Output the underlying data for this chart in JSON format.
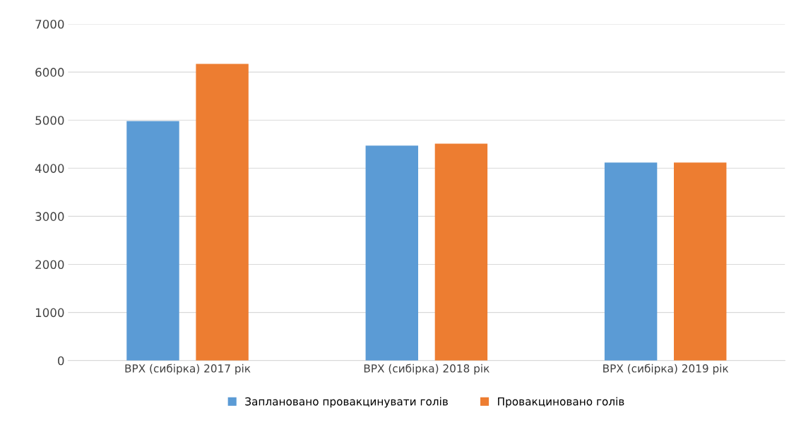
{
  "chart_data": {
    "type": "bar",
    "categories": [
      "ВРХ (сибірка) 2017 рік",
      "ВРХ (сибірка) 2018 рік",
      "ВРХ (сибірка) 2019 рік"
    ],
    "series": [
      {
        "name": "Заплановано провакцинувати голів",
        "color": "#5b9bd5",
        "values": [
          4980,
          4470,
          4120
        ]
      },
      {
        "name": "Провакциновано голів",
        "color": "#ed7d31",
        "values": [
          6170,
          4510,
          4120
        ]
      }
    ],
    "ylim": [
      0,
      7000
    ],
    "yticks": [
      0,
      1000,
      2000,
      3000,
      4000,
      5000,
      6000,
      7000
    ],
    "grid": "y",
    "legend": "bottom"
  }
}
